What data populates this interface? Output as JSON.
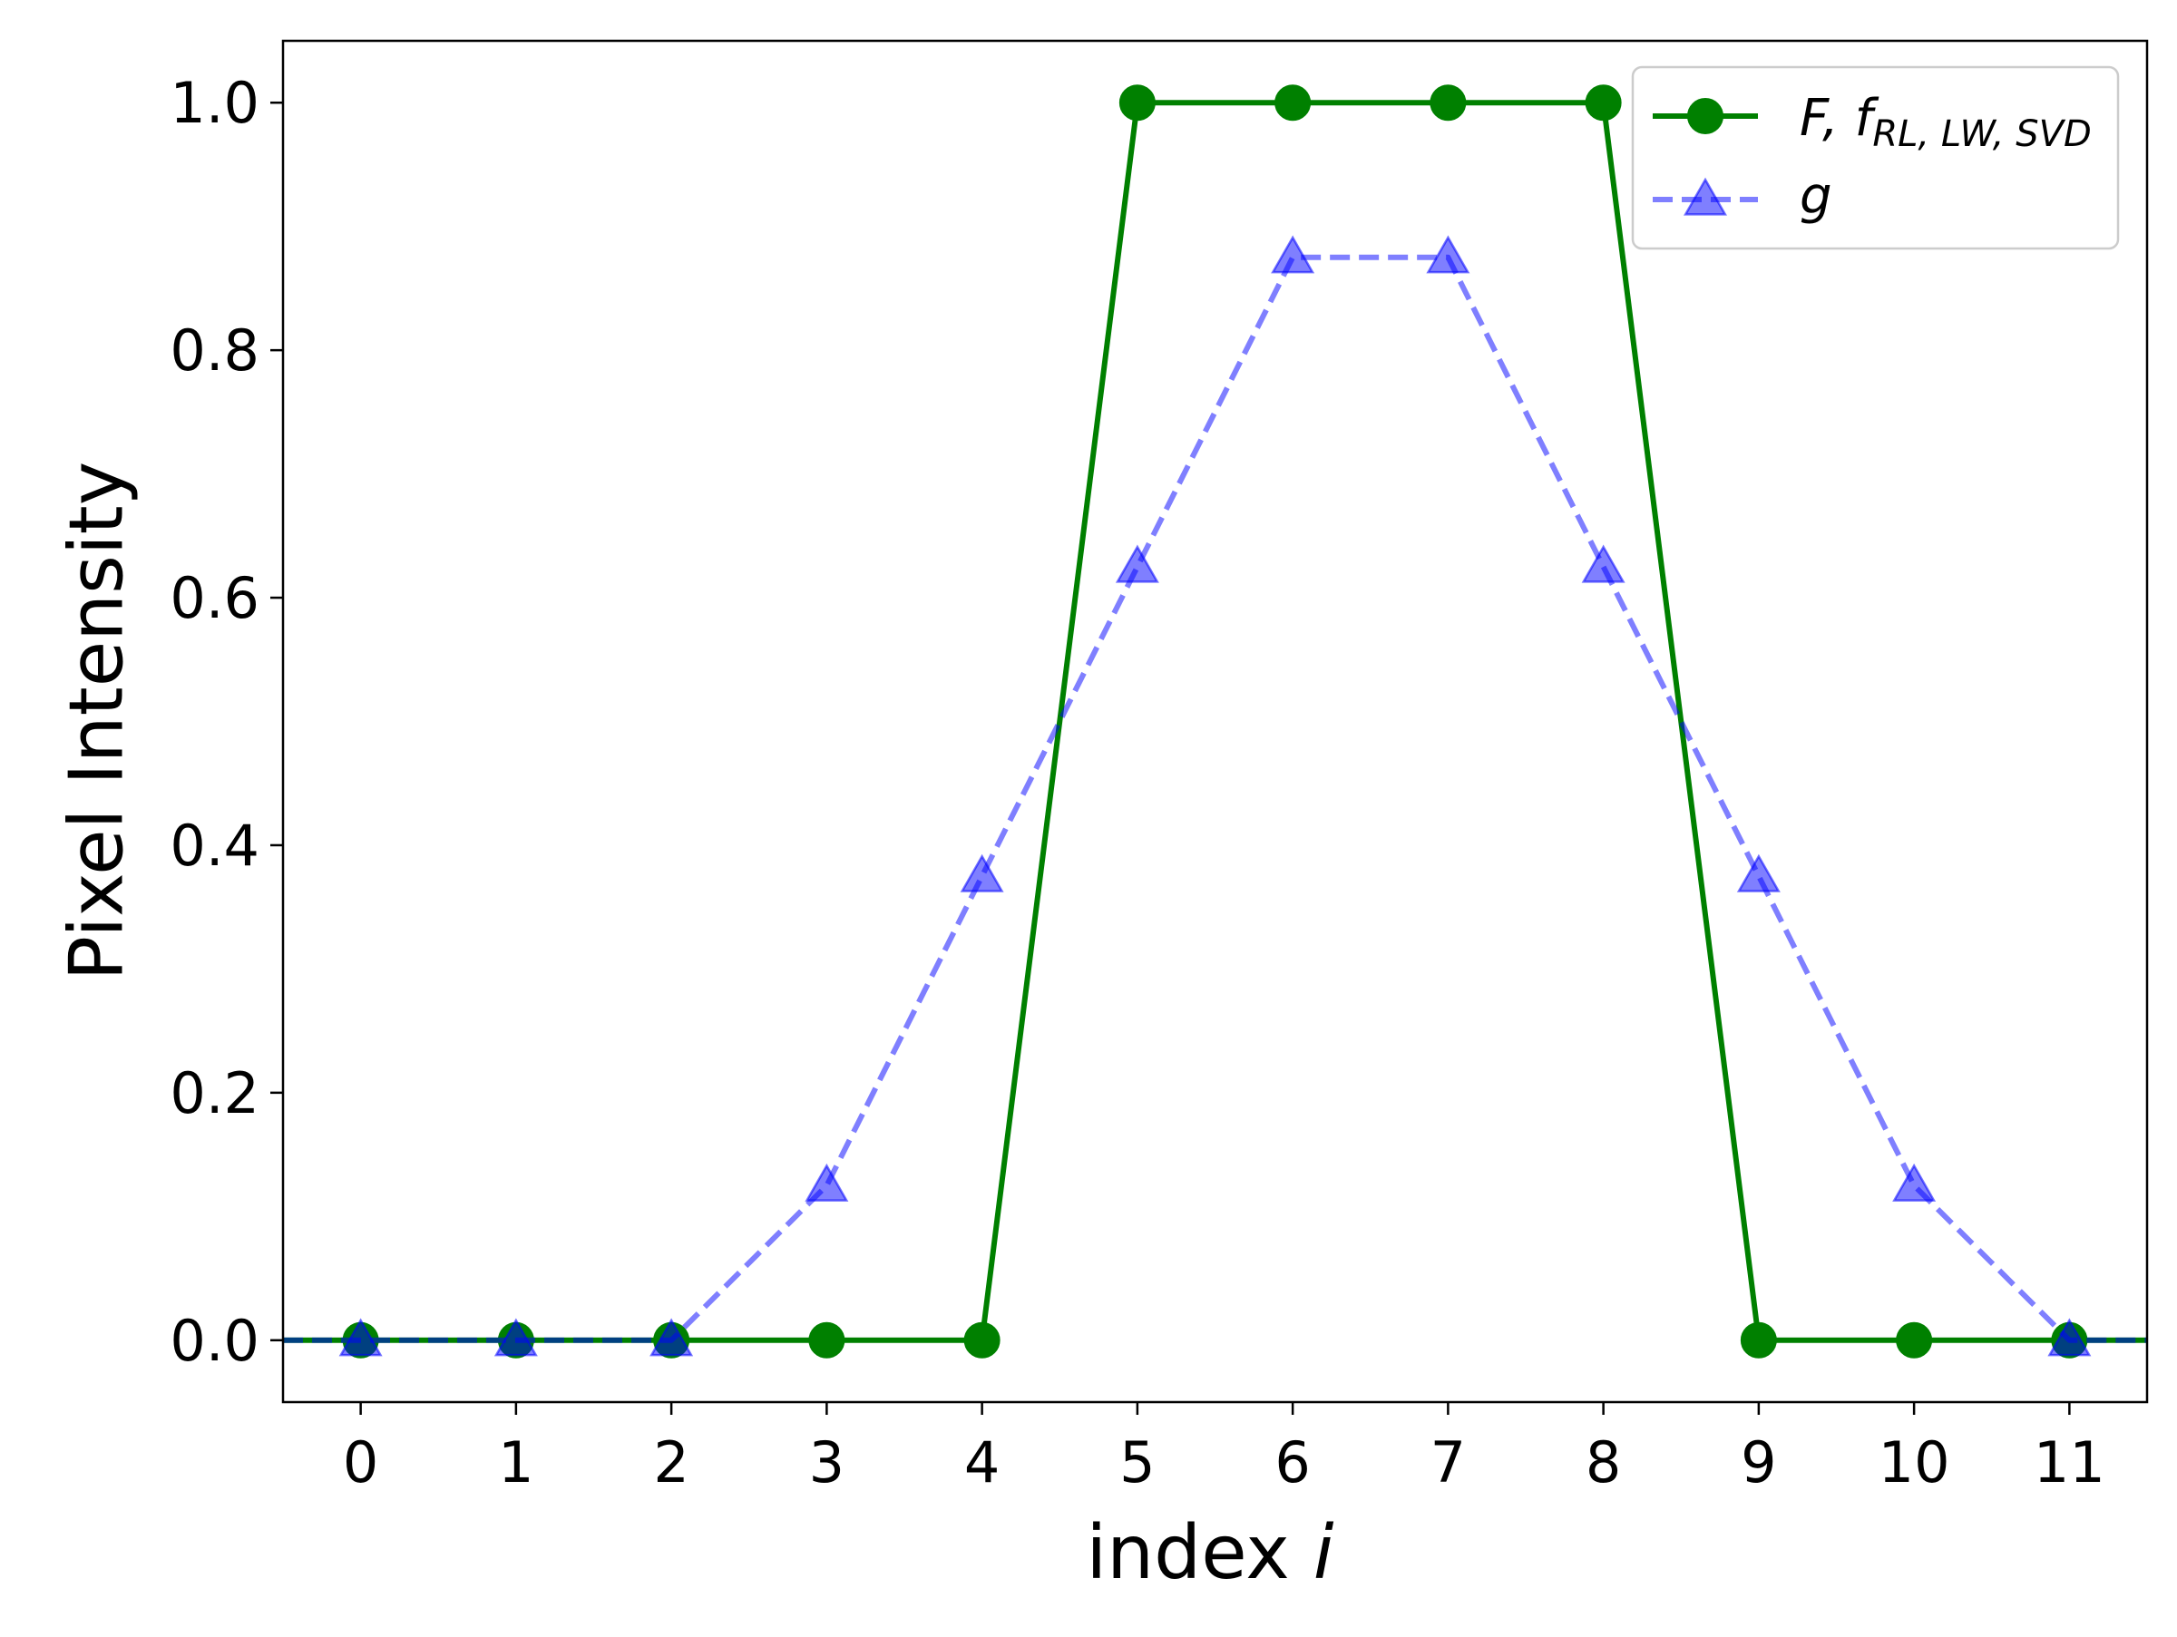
{
  "chart_data": {
    "type": "line",
    "xlabel": "index ",
    "xlabel_var": "i",
    "ylabel": "Pixel Intensity",
    "xlim": [
      -0.5,
      11.5
    ],
    "ylim": [
      -0.05,
      1.05
    ],
    "x": [
      0,
      1,
      2,
      3,
      4,
      5,
      6,
      7,
      8,
      9,
      10,
      11
    ],
    "x_ticks": [
      "0",
      "1",
      "2",
      "3",
      "4",
      "5",
      "6",
      "7",
      "8",
      "9",
      "10",
      "11"
    ],
    "y_ticks": [
      "0.0",
      "0.2",
      "0.4",
      "0.6",
      "0.8",
      "1.0"
    ],
    "y_tick_values": [
      0,
      0.2,
      0.4,
      0.6,
      0.8,
      1.0
    ],
    "grid": false,
    "legend_position": "top-right",
    "series": [
      {
        "name": "F, f",
        "name_subscript": "RL, LW, SVD",
        "values": [
          0,
          0,
          0,
          0,
          0,
          1,
          1,
          1,
          1,
          0,
          0,
          0
        ],
        "color": "#008000",
        "marker": "circle",
        "line_style": "solid"
      },
      {
        "name": "g",
        "values": [
          0,
          0,
          0,
          0.125,
          0.375,
          0.625,
          0.875,
          0.875,
          0.625,
          0.375,
          0.125,
          0
        ],
        "color": "#0000ff",
        "opacity": 0.5,
        "marker": "triangle",
        "line_style": "dashed"
      }
    ]
  }
}
